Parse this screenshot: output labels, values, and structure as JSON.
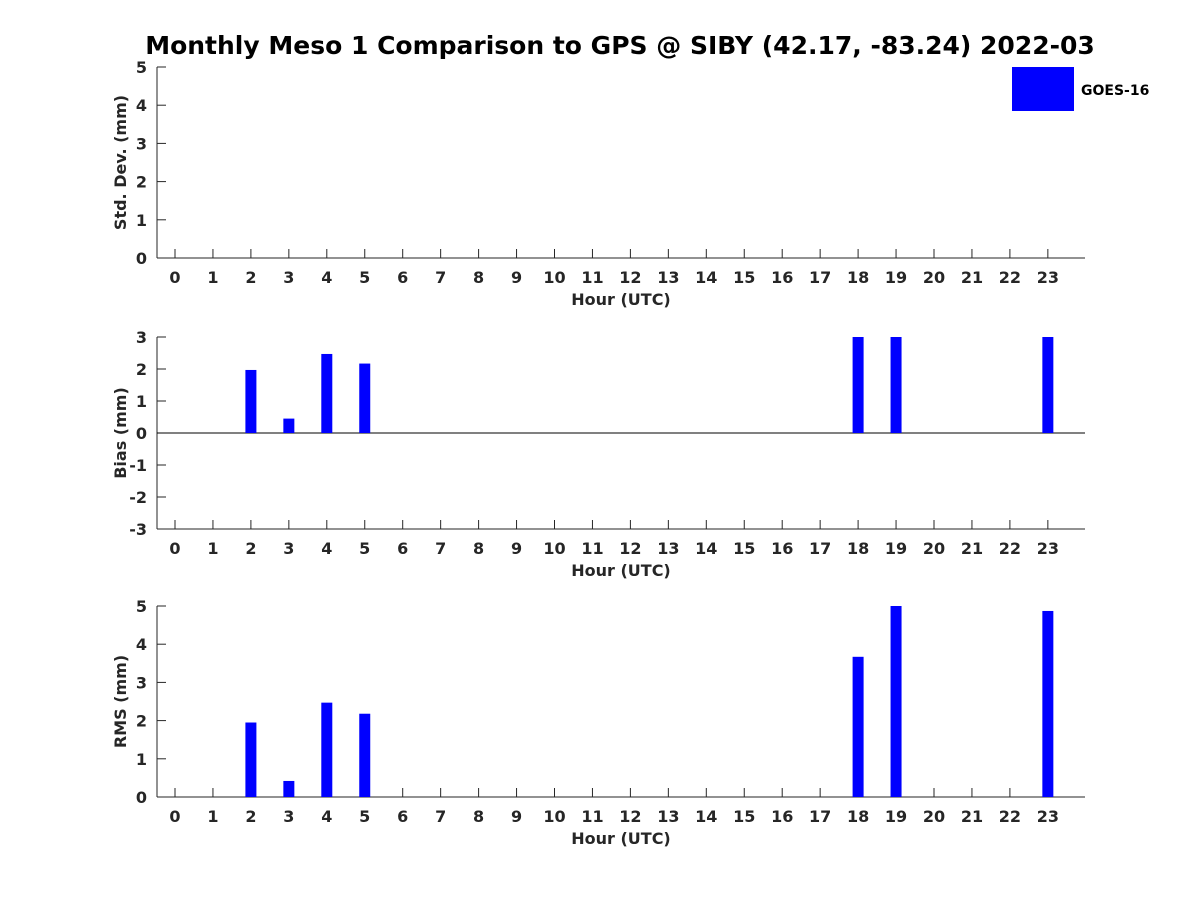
{
  "title": "Monthly Meso 1 Comparison to GPS @ SIBY (42.17, -83.24) 2022-03",
  "legend": {
    "label": "GOES-16",
    "color": "#0000ff",
    "placement": "top-right"
  },
  "chart_data": [
    {
      "type": "bar",
      "ylabel": "Std. Dev. (mm)",
      "xlabel": "Hour (UTC)",
      "ylim": [
        0,
        5
      ],
      "yticks": [
        "0",
        "1",
        "2",
        "3",
        "4",
        "5"
      ],
      "categories": [
        "0",
        "1",
        "2",
        "3",
        "4",
        "5",
        "6",
        "7",
        "8",
        "9",
        "10",
        "11",
        "12",
        "13",
        "14",
        "15",
        "16",
        "17",
        "18",
        "19",
        "20",
        "21",
        "22",
        "23"
      ],
      "series": [
        {
          "values": [
            0,
            0,
            0,
            0,
            0,
            0,
            0,
            0,
            0,
            0,
            0,
            0,
            0,
            0,
            0,
            0,
            0,
            0,
            0,
            0,
            0,
            0,
            0,
            0
          ],
          "color": "#0000ff"
        }
      ],
      "zero_line": false
    },
    {
      "type": "bar",
      "ylabel": "Bias (mm)",
      "xlabel": "Hour (UTC)",
      "ylim": [
        -3,
        3
      ],
      "yticks": [
        "-3",
        "-2",
        "-1",
        "0",
        "1",
        "2",
        "3"
      ],
      "categories": [
        "0",
        "1",
        "2",
        "3",
        "4",
        "5",
        "6",
        "7",
        "8",
        "9",
        "10",
        "11",
        "12",
        "13",
        "14",
        "15",
        "16",
        "17",
        "18",
        "19",
        "20",
        "21",
        "22",
        "23"
      ],
      "series": [
        {
          "values": [
            0,
            0,
            1.97,
            0.45,
            2.47,
            2.17,
            0,
            0,
            0,
            0,
            0,
            0,
            0,
            0,
            0,
            0,
            0,
            0,
            3.0,
            3.0,
            0,
            0,
            0,
            3.0
          ],
          "color": "#0000ff"
        }
      ],
      "zero_line": true
    },
    {
      "type": "bar",
      "ylabel": "RMS (mm)",
      "xlabel": "Hour (UTC)",
      "ylim": [
        0,
        5
      ],
      "yticks": [
        "0",
        "1",
        "2",
        "3",
        "4",
        "5"
      ],
      "categories": [
        "0",
        "1",
        "2",
        "3",
        "4",
        "5",
        "6",
        "7",
        "8",
        "9",
        "10",
        "11",
        "12",
        "13",
        "14",
        "15",
        "16",
        "17",
        "18",
        "19",
        "20",
        "21",
        "22",
        "23"
      ],
      "series": [
        {
          "values": [
            0,
            0,
            1.95,
            0.42,
            2.47,
            2.18,
            0,
            0,
            0,
            0,
            0,
            0,
            0,
            0,
            0,
            0,
            0,
            0,
            3.67,
            5.0,
            0,
            0,
            0,
            4.87
          ],
          "color": "#0000ff"
        }
      ],
      "zero_line": false
    }
  ]
}
